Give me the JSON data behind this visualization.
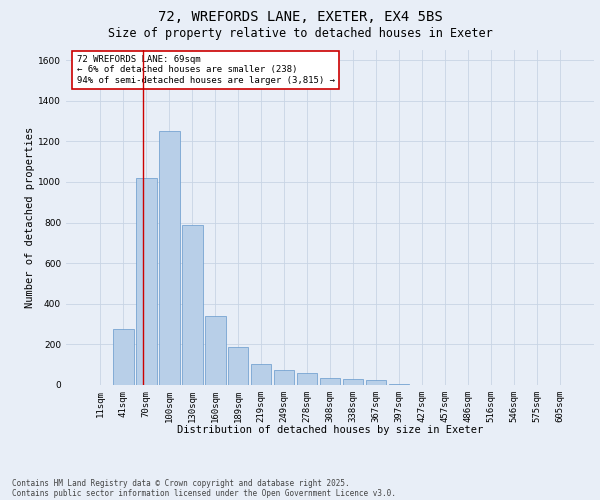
{
  "title_line1": "72, WREFORDS LANE, EXETER, EX4 5BS",
  "title_line2": "Size of property relative to detached houses in Exeter",
  "xlabel": "Distribution of detached houses by size in Exeter",
  "ylabel": "Number of detached properties",
  "background_color": "#e8eef7",
  "bar_color": "#b8cfe8",
  "bar_edge_color": "#6699cc",
  "categories": [
    "11sqm",
    "41sqm",
    "70sqm",
    "100sqm",
    "130sqm",
    "160sqm",
    "189sqm",
    "219sqm",
    "249sqm",
    "278sqm",
    "308sqm",
    "338sqm",
    "367sqm",
    "397sqm",
    "427sqm",
    "457sqm",
    "486sqm",
    "516sqm",
    "546sqm",
    "575sqm",
    "605sqm"
  ],
  "values": [
    0,
    275,
    1020,
    1250,
    790,
    340,
    185,
    105,
    75,
    60,
    35,
    30,
    25,
    5,
    0,
    0,
    0,
    0,
    0,
    0,
    0
  ],
  "ylim": [
    0,
    1650
  ],
  "yticks": [
    0,
    200,
    400,
    600,
    800,
    1000,
    1200,
    1400,
    1600
  ],
  "red_line_x": 1.85,
  "annotation_text": "72 WREFORDS LANE: 69sqm\n← 6% of detached houses are smaller (238)\n94% of semi-detached houses are larger (3,815) →",
  "annotation_box_color": "#ffffff",
  "annotation_box_edge_color": "#cc0000",
  "footer_line1": "Contains HM Land Registry data © Crown copyright and database right 2025.",
  "footer_line2": "Contains public sector information licensed under the Open Government Licence v3.0.",
  "grid_color": "#c8d4e4",
  "title_fontsize": 10,
  "subtitle_fontsize": 8.5,
  "axis_label_fontsize": 7.5,
  "tick_fontsize": 6.5,
  "annotation_fontsize": 6.5,
  "footer_fontsize": 5.5
}
